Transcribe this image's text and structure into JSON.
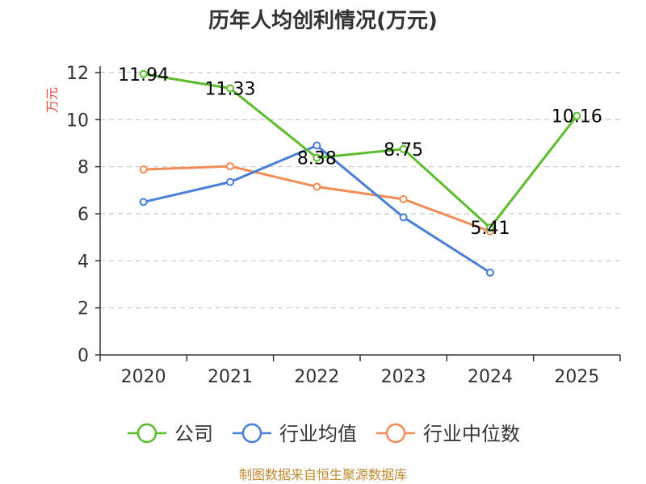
{
  "chart_data": {
    "type": "line",
    "title": "历年人均创利情况(万元)",
    "ylabel": "万元",
    "xlabel": "",
    "categories": [
      "2020",
      "2021",
      "2022",
      "2023",
      "2024",
      "2025"
    ],
    "ylim": [
      0,
      12
    ],
    "yticks": [
      0,
      2,
      4,
      6,
      8,
      10,
      12
    ],
    "grid": true,
    "legend_position": "bottom",
    "series": [
      {
        "name": "公司",
        "color": "#5bbd2b",
        "values": [
          11.94,
          11.33,
          8.38,
          8.75,
          5.41,
          10.16
        ],
        "labels": [
          "11.94",
          "11.33",
          "8.38",
          "8.75",
          "5.41",
          "10.16"
        ]
      },
      {
        "name": "行业均值",
        "color": "#4a7fd8",
        "values": [
          6.5,
          7.35,
          8.9,
          5.85,
          3.5,
          null
        ]
      },
      {
        "name": "行业中位数",
        "color": "#f08c56",
        "values": [
          7.88,
          8.02,
          7.15,
          6.62,
          5.25,
          null
        ]
      }
    ]
  },
  "footer": {
    "source": "制图数据来自恒生聚源数据库"
  }
}
